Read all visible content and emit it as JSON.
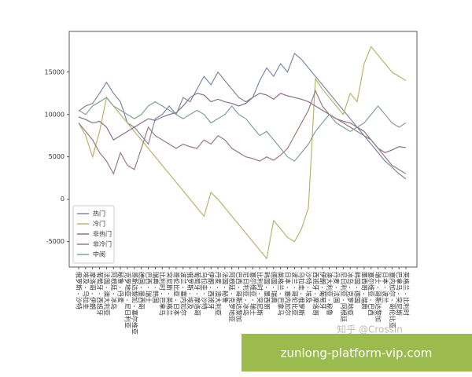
{
  "chart_data": {
    "type": "line",
    "categories": [
      "俄罗斯 - 沙特",
      "埃及 - 乌拉圭",
      "摩洛哥 - 伊朗",
      "葡萄牙 - 西班牙",
      "法国 - 澳大利亚",
      "阿根廷 - 冰岛",
      "秘鲁 - 丹麦",
      "克罗地亚 - 尼日利亚",
      "哥斯达黎加 - 塞尔维亚",
      "德国 - 墨西哥",
      "巴西 - 瑞士",
      "瑞典 - 韩国",
      "比利时 - 巴拿马",
      "突尼斯 - 英格兰",
      "哥伦比亚 - 日本",
      "波兰 - 塞内加尔",
      "俄罗斯 - 埃及",
      "葡萄牙 - 摩洛哥",
      "乌拉圭 - 沙特",
      "伊朗 - 西班牙",
      "丹麦 - 澳大利亚",
      "法国 - 秘鲁",
      "阿根廷 - 克罗地亚",
      "巴西 - 哥斯达黎加",
      "尼日利亚 - 冰岛",
      "塞尔维亚 - 瑞士",
      "比利时 - 突尼斯",
      "韩国 - 墨西哥",
      "德国 - 瑞典",
      "英格兰 - 巴拿马",
      "日本 - 塞内加尔",
      "波兰 - 哥伦比亚",
      "乌拉圭 - 俄罗斯",
      "沙特 - 埃及",
      "西班牙 - 摩洛哥",
      "伊朗 - 葡萄牙",
      "澳大利亚 - 秘鲁",
      "丹麦 - 法国",
      "尼日利亚 - 阿根廷",
      "冰岛 - 克罗地亚",
      "韩国 - 德国",
      "墨西哥 - 瑞典",
      "塞尔维亚 - 巴西",
      "瑞士 - 哥斯达黎加",
      "日本 - 波兰",
      "塞内加尔 - 哥伦比亚",
      "巴拿马 - 突尼斯",
      "英格兰 - 比利时"
    ],
    "series": [
      {
        "name": "热门",
        "color": "#7d88a6",
        "values": [
          10400,
          11000,
          11300,
          12500,
          13800,
          12500,
          11500,
          9000,
          8500,
          7500,
          6500,
          9500,
          10000,
          11000,
          10000,
          12000,
          11500,
          13000,
          14500,
          13500,
          15000,
          14000,
          13000,
          12000,
          11500,
          12000,
          14000,
          15500,
          14500,
          16000,
          15000,
          17200,
          16500,
          15500,
          14500,
          13500,
          12500,
          11500,
          10500,
          9500,
          8500,
          7500,
          6500,
          5500,
          4500,
          3800,
          3000,
          2400
        ]
      },
      {
        "name": "冷门",
        "color": "#b8b46e",
        "values": [
          9000,
          7500,
          5000,
          8000,
          12000,
          11000,
          10000,
          9000,
          8000,
          7000,
          6000,
          5000,
          4000,
          3000,
          2000,
          1000,
          0,
          -1000,
          -2000,
          800,
          0,
          -1000,
          -2000,
          -3000,
          -4000,
          -5000,
          -6000,
          -7000,
          -2500,
          -3500,
          -4500,
          -5000,
          -3500,
          -1000,
          14200,
          13000,
          12000,
          11000,
          10000,
          12500,
          11500,
          16000,
          18000,
          17000,
          16000,
          15000,
          14500,
          14000
        ]
      },
      {
        "name": "非热门",
        "color": "#8c6e8e",
        "values": [
          9700,
          9400,
          9000,
          9200,
          8500,
          7000,
          7500,
          8000,
          8500,
          9000,
          9500,
          9300,
          9700,
          10000,
          10200,
          11000,
          12000,
          12500,
          12300,
          11500,
          11800,
          11500,
          11300,
          11000,
          11300,
          12000,
          12500,
          12300,
          11800,
          12500,
          12200,
          12000,
          11800,
          11500,
          11000,
          10500,
          10000,
          9500,
          9200,
          9000,
          8500,
          8000,
          7000,
          6000,
          5500,
          5800,
          6200,
          6100
        ]
      },
      {
        "name": "非冷门",
        "color": "#9a7b76",
        "values": [
          9000,
          8000,
          7000,
          5500,
          4500,
          3000,
          5500,
          4000,
          3500,
          6000,
          8500,
          7500,
          7000,
          6500,
          6000,
          6500,
          6200,
          6000,
          7000,
          6500,
          7500,
          7000,
          6000,
          5500,
          5000,
          4800,
          4500,
          5000,
          4600,
          5200,
          6000,
          7500,
          9000,
          10500,
          12800,
          11000,
          10000,
          9500,
          9000,
          8500,
          8000,
          7500,
          7000,
          6000,
          5000,
          4000,
          3500,
          3000
        ]
      },
      {
        "name": "中阅",
        "color": "#7fa394",
        "values": [
          10500,
          10000,
          11000,
          11500,
          12000,
          11000,
          10500,
          10000,
          9500,
          10000,
          11000,
          11500,
          11000,
          10500,
          10000,
          9500,
          10000,
          10500,
          10000,
          9000,
          9500,
          10000,
          11000,
          10000,
          9500,
          8500,
          7500,
          8000,
          7000,
          6000,
          5000,
          4500,
          5500,
          6500,
          8000,
          9000,
          10000,
          9000,
          8500,
          8000,
          8500,
          9000,
          10000,
          11000,
          10000,
          9000,
          8500,
          9000
        ]
      }
    ],
    "ylim": [
      -8000,
      19800
    ],
    "yticks": [
      -5000,
      0,
      5000,
      10000,
      15000
    ],
    "legend": "lower left",
    "watermark": "知乎 @Crossin",
    "banner": "zunlong-platform-vip.com"
  }
}
